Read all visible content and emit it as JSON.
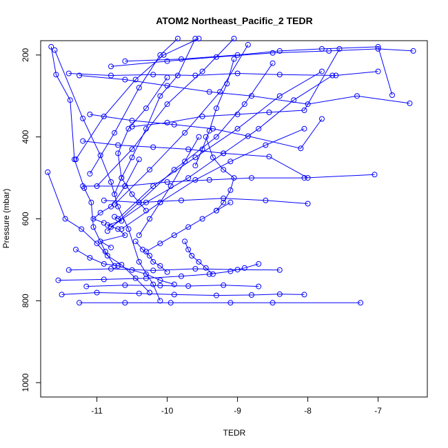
{
  "chart_data": {
    "type": "line",
    "title": "ATOM2 Northeast_Pacific_2 TEDR",
    "xlabel": "TEDR",
    "ylabel": "Pressure (mbar)",
    "xlim": [
      -11.8,
      -6.3
    ],
    "ylim": [
      1035,
      165
    ],
    "x_ticks": [
      -11,
      -10,
      -9,
      -8,
      -7
    ],
    "y_ticks": [
      200,
      400,
      600,
      800,
      1000
    ],
    "grid": false,
    "color": "#0000ff",
    "series": [
      {
        "x": [
          -11.65,
          -11.58,
          -11.38,
          -11.32,
          -11.18,
          -11.08,
          -11.05,
          -10.88,
          -10.75
        ],
        "y": [
          180,
          248,
          310,
          455,
          525,
          560,
          620,
          680,
          715
        ]
      },
      {
        "x": [
          -11.6,
          -11.2,
          -10.95,
          -10.8,
          -10.7,
          -10.55,
          -10.4,
          -10.2,
          -10.1
        ],
        "y": [
          188,
          355,
          445,
          510,
          570,
          625,
          705,
          760,
          800
        ]
      },
      {
        "x": [
          -11.7,
          -11.45,
          -11.22,
          -11.0,
          -10.85,
          -10.65,
          -10.45,
          -10.25
        ],
        "y": [
          486,
          600,
          625,
          660,
          690,
          712,
          745,
          780
        ]
      },
      {
        "x": [
          -11.3,
          -11.1,
          -10.9,
          -10.7,
          -10.5,
          -10.3,
          -10.1,
          -9.9
        ],
        "y": [
          675,
          695,
          710,
          715,
          725,
          735,
          750,
          760
        ]
      },
      {
        "x": [
          -11.55,
          -10.9,
          -10.3,
          -9.8,
          -9.4,
          -9.1,
          -8.9,
          -8.7
        ],
        "y": [
          750,
          748,
          745,
          740,
          735,
          728,
          720,
          710
        ]
      },
      {
        "x": [
          -11.5,
          -11.0,
          -10.4,
          -9.9,
          -9.3,
          -8.8,
          -8.4,
          -8.05
        ],
        "y": [
          785,
          780,
          782,
          785,
          787,
          786,
          784,
          785
        ]
      },
      {
        "x": [
          -11.25,
          -10.6,
          -9.95,
          -9.1,
          -8.5,
          -7.25
        ],
        "y": [
          805,
          805,
          805,
          805,
          805,
          805
        ]
      },
      {
        "x": [
          -11.4,
          -10.8,
          -10.2,
          -9.6,
          -9.0,
          -8.4
        ],
        "y": [
          725,
          722,
          726,
          722,
          724,
          725
        ]
      },
      {
        "x": [
          -11.15,
          -10.6,
          -10.1,
          -9.7,
          -9.2,
          -8.7
        ],
        "y": [
          765,
          762,
          763,
          764,
          762,
          765
        ]
      },
      {
        "x": [
          -10.75,
          -10.65,
          -10.85,
          -10.7,
          -10.6,
          -10.95,
          -10.8
        ],
        "y": [
          595,
          605,
          615,
          625,
          640,
          655,
          670
        ]
      },
      {
        "x": [
          -10.4,
          -10.6,
          -10.8,
          -10.95,
          -11.05,
          -10.9
        ],
        "y": [
          455,
          520,
          570,
          585,
          600,
          610
        ]
      },
      {
        "x": [
          -10.0,
          -10.3,
          -10.55,
          -10.7,
          -10.65,
          -10.5,
          -10.3
        ],
        "y": [
          255,
          330,
          380,
          440,
          500,
          540,
          580
        ]
      },
      {
        "x": [
          -9.6,
          -9.85,
          -10.1,
          -10.3,
          -10.5,
          -10.65,
          -10.75
        ],
        "y": [
          160,
          250,
          300,
          380,
          450,
          500,
          540
        ]
      },
      {
        "x": [
          -10.65,
          -10.1,
          -9.6,
          -9.1,
          -8.6,
          -8.05
        ],
        "y": [
          625,
          560,
          505,
          460,
          420,
          380
        ]
      },
      {
        "x": [
          -10.8,
          -10.3,
          -9.7,
          -9.2,
          -8.7,
          -8.2,
          -7.65
        ],
        "y": [
          620,
          560,
          500,
          440,
          380,
          310,
          250
        ]
      },
      {
        "x": [
          -10.7,
          -10.2,
          -9.6,
          -9.0,
          -8.4,
          -7.8
        ],
        "y": [
          600,
          520,
          450,
          380,
          300,
          240
        ]
      },
      {
        "x": [
          -10.85,
          -10.4,
          -9.9,
          -9.3,
          -8.9,
          -8.5
        ],
        "y": [
          630,
          560,
          480,
          400,
          320,
          220
        ]
      },
      {
        "x": [
          -10.75,
          -10.25,
          -9.75,
          -9.25,
          -8.85
        ],
        "y": [
          565,
          480,
          390,
          290,
          175
        ]
      },
      {
        "x": [
          -11.0,
          -10.5,
          -10.0,
          -9.5,
          -9.05
        ],
        "y": [
          520,
          430,
          320,
          240,
          160
        ]
      },
      {
        "x": [
          -11.1,
          -10.75,
          -10.4,
          -10.1,
          -9.85
        ],
        "y": [
          490,
          390,
          280,
          200,
          160
        ]
      },
      {
        "x": [
          -11.3,
          -10.9,
          -10.45,
          -10.05,
          -9.55
        ],
        "y": [
          455,
          350,
          260,
          200,
          160
        ]
      },
      {
        "x": [
          -11.4,
          -10.8,
          -10.2,
          -9.6,
          -9.0,
          -8.4,
          -7.6,
          -7.0
        ],
        "y": [
          245,
          250,
          248,
          250,
          245,
          248,
          250,
          240
        ]
      },
      {
        "x": [
          -11.25,
          -10.6,
          -10.0,
          -9.4,
          -8.8,
          -8.0,
          -7.3,
          -6.55
        ],
        "y": [
          250,
          260,
          275,
          290,
          300,
          320,
          300,
          318
        ]
      },
      {
        "x": [
          -10.6,
          -9.8,
          -9.0,
          -8.4,
          -7.8,
          -7.0,
          -6.8
        ],
        "y": [
          215,
          210,
          200,
          190,
          185,
          180,
          298
        ]
      },
      {
        "x": [
          -10.8,
          -10.0,
          -9.3,
          -8.5,
          -7.7,
          -7.0,
          -6.5
        ],
        "y": [
          228,
          215,
          205,
          195,
          190,
          185,
          190
        ]
      },
      {
        "x": [
          -11.1,
          -10.5,
          -9.9,
          -9.35,
          -8.85,
          -8.1,
          -7.8
        ],
        "y": [
          345,
          360,
          370,
          380,
          398,
          428,
          356
        ]
      },
      {
        "x": [
          -10.5,
          -10.0,
          -9.5,
          -9.0,
          -8.55,
          -8.05,
          -7.55
        ],
        "y": [
          375,
          365,
          350,
          345,
          340,
          335,
          185
        ]
      },
      {
        "x": [
          -11.2,
          -10.7,
          -10.2,
          -9.7,
          -9.2,
          -8.55,
          -8.0
        ],
        "y": [
          410,
          420,
          425,
          430,
          440,
          448,
          500
        ]
      },
      {
        "x": [
          -11.2,
          -10.6,
          -10.0,
          -9.4,
          -8.8,
          -8.05,
          -7.05
        ],
        "y": [
          520,
          520,
          510,
          505,
          500,
          500,
          492
        ]
      },
      {
        "x": [
          -10.9,
          -10.4,
          -9.8,
          -9.2,
          -8.6,
          -8.0
        ],
        "y": [
          555,
          560,
          555,
          550,
          555,
          563
        ]
      },
      {
        "x": [
          -9.1,
          -9.3,
          -9.5,
          -9.7,
          -9.9,
          -10.1,
          -10.3
        ],
        "y": [
          560,
          580,
          600,
          620,
          640,
          660,
          680
        ]
      },
      {
        "x": [
          -9.55,
          -9.75,
          -9.95,
          -10.1,
          -10.25,
          -10.4
        ],
        "y": [
          400,
          460,
          520,
          560,
          600,
          640
        ]
      },
      {
        "x": [
          -9.45,
          -9.35,
          -9.2,
          -9.05,
          -9.1,
          -9.2,
          -9.3
        ],
        "y": [
          400,
          450,
          480,
          500,
          530,
          560,
          580
        ]
      },
      {
        "x": [
          -9.05,
          -9.15,
          -9.3,
          -9.4,
          -9.5,
          -9.6
        ],
        "y": [
          210,
          270,
          330,
          385,
          430,
          470
        ]
      },
      {
        "x": [
          -10.45,
          -10.35,
          -10.25,
          -10.2,
          -10.1,
          -10.0
        ],
        "y": [
          655,
          675,
          690,
          705,
          715,
          730
        ]
      },
      {
        "x": [
          -9.75,
          -9.7,
          -9.65,
          -9.55,
          -9.45,
          -9.35
        ],
        "y": [
          655,
          675,
          690,
          705,
          720,
          735
        ]
      }
    ]
  }
}
